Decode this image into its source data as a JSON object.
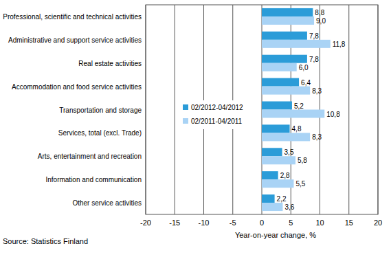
{
  "chart_data": {
    "type": "bar",
    "orientation": "horizontal",
    "categories": [
      "Professional, scientific and technical activities",
      "Administrative and support service activities",
      "Real estate activities",
      "Accommodation and food service activities",
      "Transportation and storage",
      "Services, total (excl. Trade)",
      "Arts, entertainment and recreation",
      "Information and communication",
      "Other service activities"
    ],
    "series": [
      {
        "name": "02/2012-04/2012",
        "color": "#2b9cd8",
        "values": [
          8.8,
          7.8,
          7.8,
          6.4,
          5.2,
          4.8,
          3.5,
          2.8,
          2.2
        ],
        "value_labels": [
          "8,8",
          "7,8",
          "7,8",
          "6,4",
          "5,2",
          "4,8",
          "3,5",
          "2,8",
          "2,2"
        ]
      },
      {
        "name": "02/2011-04/2011",
        "color": "#a9d3f5",
        "values": [
          9.0,
          11.8,
          6.0,
          8.3,
          10.8,
          8.3,
          5.8,
          5.5,
          3.6
        ],
        "value_labels": [
          "9,0",
          "11,8",
          "6,0",
          "8,3",
          "10,8",
          "8,3",
          "5,8",
          "5,5",
          "3,6"
        ]
      }
    ],
    "xlim": [
      -20,
      20
    ],
    "xticks": [
      -20,
      -15,
      -10,
      -5,
      0,
      5,
      10,
      15,
      20
    ],
    "x_label": "Year-on-year change, %",
    "source": "Source: Statistics Finland",
    "grid": true,
    "legend": "center",
    "data_labels": true
  }
}
